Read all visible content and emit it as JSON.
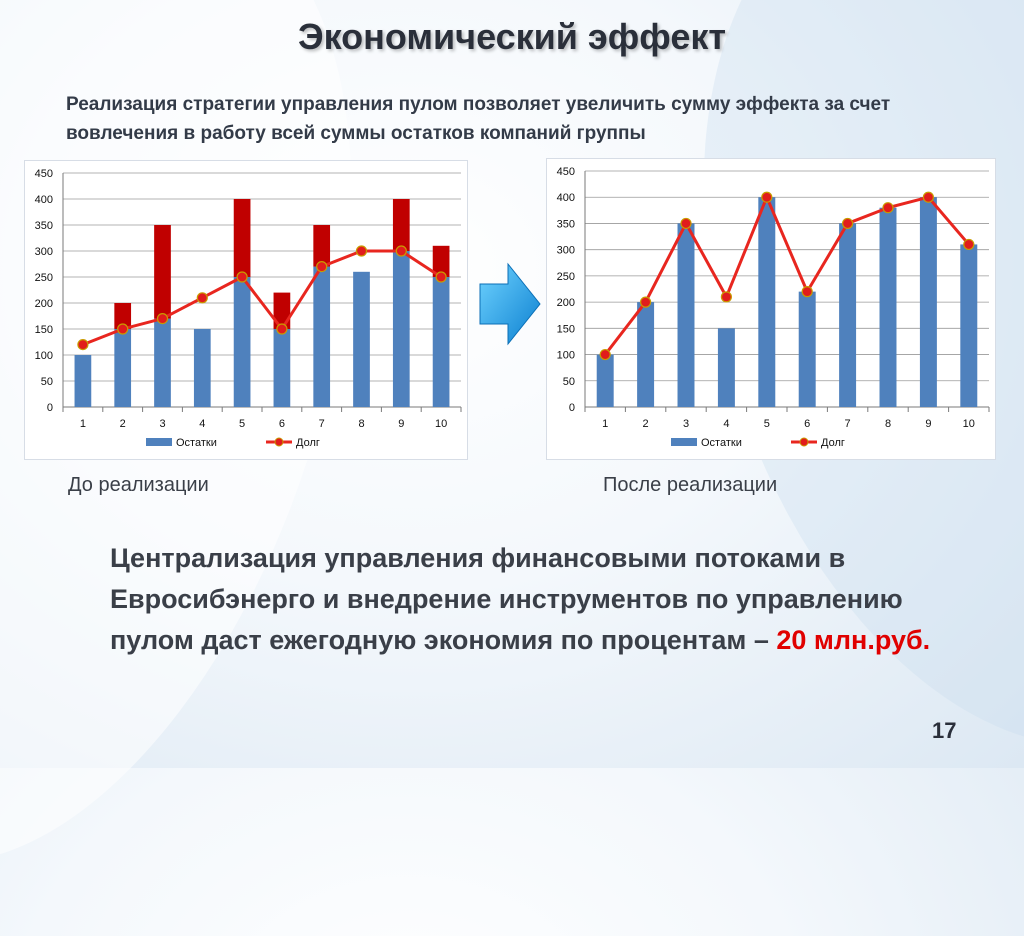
{
  "slide": {
    "title": "Экономический эффект",
    "subtitle": "Реализация стратегии управления пулом позволяет увеличить сумму эффекта за счет вовлечения в работу всей суммы остатков компаний группы",
    "caption_before": "До реализации",
    "caption_after": "После реализации",
    "body_text": "Централизация управления финансовыми потоками в Евросибэнерго и внедрение инструментов по управлению пулом даст ежегодную экономия по процентам – ",
    "body_highlight": "20 млн.руб.",
    "page_number": "17"
  },
  "colors": {
    "bar_blue": "#4f81bd",
    "bar_red": "#c00000",
    "line_red": "#e8261f",
    "accent_red": "#e00000",
    "arrow_cyan": "#1ea0e8"
  },
  "chart_data": [
    {
      "type": "bar",
      "stacked": true,
      "categories": [
        "1",
        "2",
        "3",
        "4",
        "5",
        "6",
        "7",
        "8",
        "9",
        "10"
      ],
      "ylim": [
        0,
        450
      ],
      "yticks": [
        0,
        50,
        100,
        150,
        200,
        250,
        300,
        350,
        400,
        450
      ],
      "grid": true,
      "legend_position": "bottom",
      "series": [
        {
          "name": "Остатки",
          "kind": "bar",
          "color": "#4f81bd",
          "values": [
            100,
            150,
            170,
            150,
            250,
            150,
            270,
            260,
            300,
            250
          ]
        },
        {
          "name": "",
          "kind": "bar",
          "color": "#c00000",
          "values": [
            0,
            50,
            180,
            0,
            150,
            70,
            80,
            0,
            100,
            60
          ]
        },
        {
          "name": "Долг",
          "kind": "line",
          "color": "#e8261f",
          "values": [
            120,
            150,
            170,
            210,
            250,
            150,
            270,
            300,
            300,
            250
          ]
        }
      ]
    },
    {
      "type": "bar",
      "categories": [
        "1",
        "2",
        "3",
        "4",
        "5",
        "6",
        "7",
        "8",
        "9",
        "10"
      ],
      "ylim": [
        0,
        450
      ],
      "yticks": [
        0,
        50,
        100,
        150,
        200,
        250,
        300,
        350,
        400,
        450
      ],
      "grid": true,
      "legend_position": "bottom",
      "series": [
        {
          "name": "Остатки",
          "kind": "bar",
          "color": "#4f81bd",
          "values": [
            100,
            200,
            350,
            150,
            400,
            220,
            350,
            380,
            400,
            310
          ]
        },
        {
          "name": "Долг",
          "kind": "line",
          "color": "#e8261f",
          "values": [
            100,
            200,
            350,
            210,
            400,
            220,
            350,
            380,
            400,
            310
          ]
        }
      ]
    }
  ]
}
